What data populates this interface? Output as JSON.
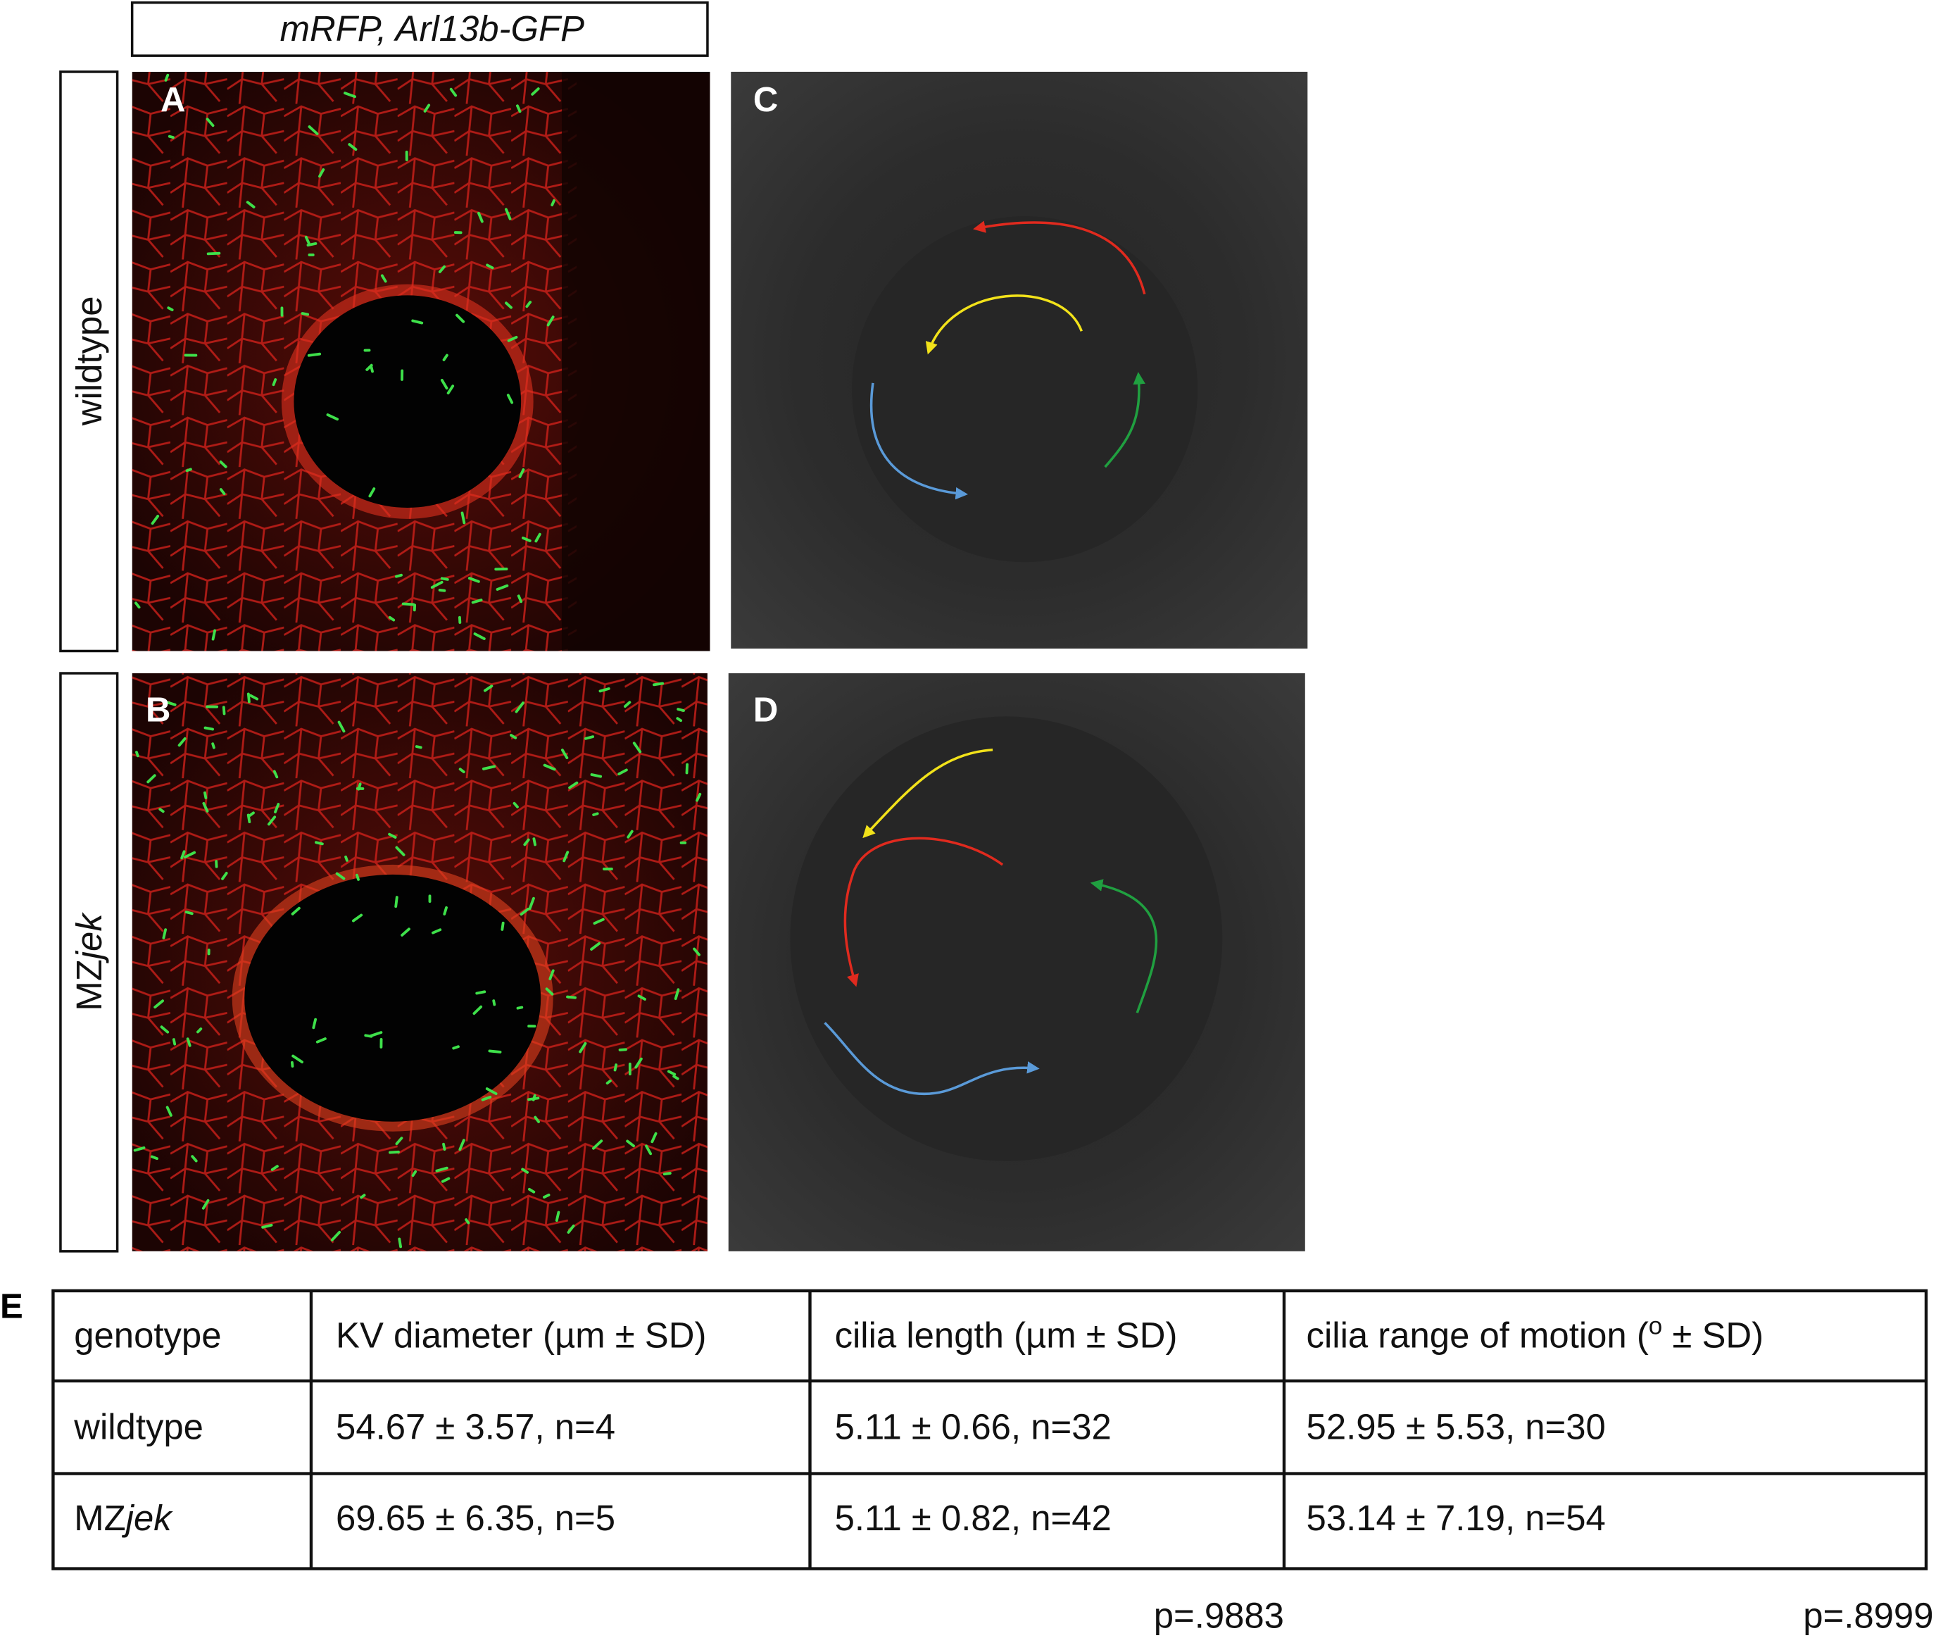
{
  "header": {
    "label": "mRFP, Arl13b-GFP"
  },
  "row_labels": [
    [
      "wildtype"
    ],
    [
      "MZ",
      "jek"
    ]
  ],
  "panels": [
    "A",
    "B",
    "C",
    "D"
  ],
  "table": {
    "letter": "E",
    "header": [
      [
        "genotype"
      ],
      [
        "KV diameter (µm ± SD)"
      ],
      [
        "cilia length (µm ± SD)"
      ],
      [
        "cilia range of motion (",
        "o",
        " ± SD)"
      ]
    ],
    "rows": [
      [
        [
          "wildtype"
        ],
        [
          "54.67 ± 3.57, n=4"
        ],
        [
          "5.11 ± 0.66, n=32"
        ],
        [
          "52.95 ± 5.53, n=30"
        ]
      ],
      [
        [
          "MZ",
          "jek"
        ],
        [
          "69.65 ± 6.35, n=5"
        ],
        [
          "5.11 ± 0.82, n=42"
        ],
        [
          "53.14 ± 7.19, n=54"
        ]
      ]
    ]
  },
  "p_values": [
    "p=.9883",
    "p=.8999"
  ]
}
